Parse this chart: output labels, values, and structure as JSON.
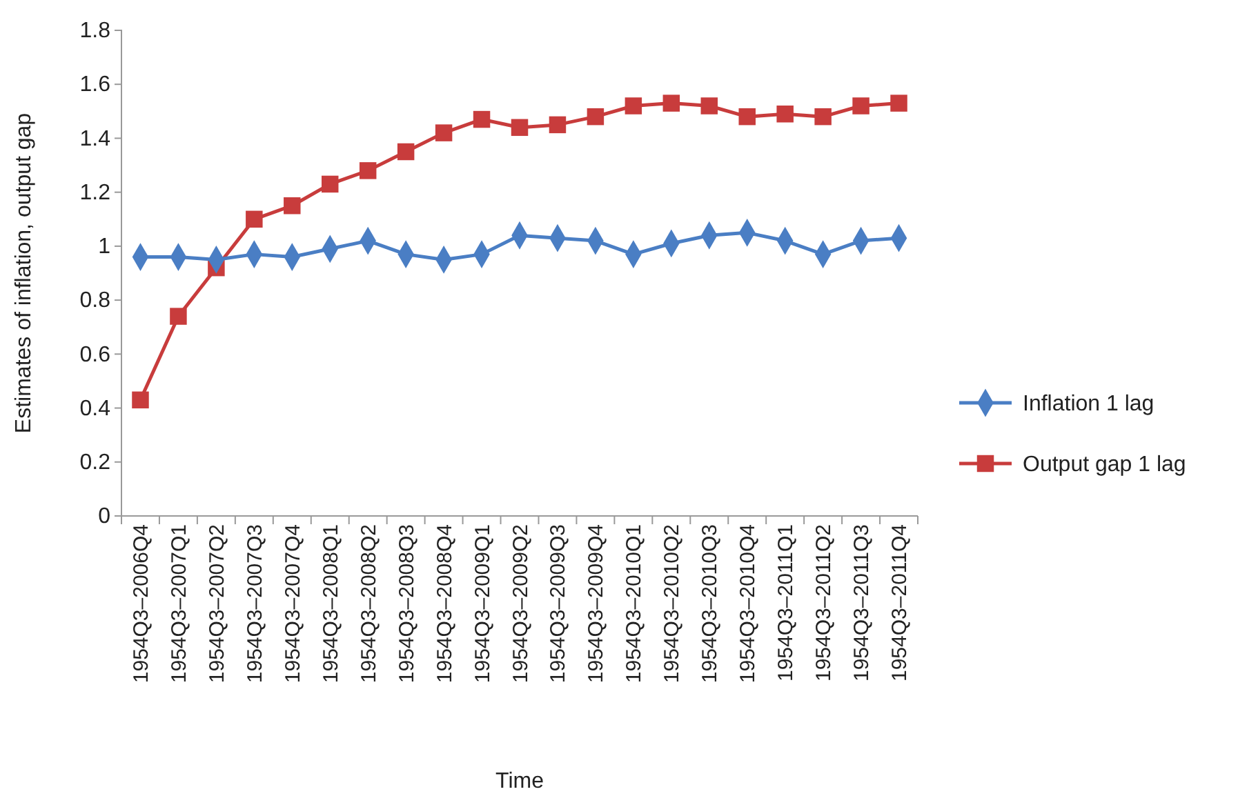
{
  "chart_data": {
    "type": "line",
    "xlabel": "Time",
    "ylabel": "Estimates of inflation, output gap",
    "categories": [
      "1954Q3–2006Q4",
      "1954Q3–2007Q1",
      "1954Q3–2007Q2",
      "1954Q3–2007Q3",
      "1954Q3–2007Q4",
      "1954Q3–2008Q1",
      "1954Q3–2008Q2",
      "1954Q3–2008Q3",
      "1954Q3–2008Q4",
      "1954Q3–2009Q1",
      "1954Q3–2009Q2",
      "1954Q3–2009Q3",
      "1954Q3–2009Q4",
      "1954Q3–2010Q1",
      "1954Q3–2010Q2",
      "1954Q3–2010Q3",
      "1954Q3–2010Q4",
      "1954Q3–2011Q1",
      "1954Q3–2011Q2",
      "1954Q3–2011Q3",
      "1954Q3–2011Q4"
    ],
    "series": [
      {
        "name": "Inflation 1 lag",
        "color": "#4a7ec4",
        "marker": "diamond",
        "values": [
          0.96,
          0.96,
          0.95,
          0.97,
          0.96,
          0.99,
          1.02,
          0.97,
          0.95,
          0.97,
          1.04,
          1.03,
          1.02,
          0.97,
          1.01,
          1.04,
          1.05,
          1.02,
          0.97,
          1.02,
          1.03
        ]
      },
      {
        "name": "Output gap 1 lag",
        "color": "#c83c3c",
        "marker": "square",
        "values": [
          0.43,
          0.74,
          0.92,
          1.1,
          1.15,
          1.23,
          1.28,
          1.35,
          1.42,
          1.47,
          1.44,
          1.45,
          1.48,
          1.52,
          1.53,
          1.52,
          1.48,
          1.49,
          1.48,
          1.52,
          1.53
        ]
      }
    ],
    "ylim": [
      0,
      1.8
    ],
    "yticks": [
      0,
      0.2,
      0.4,
      0.6,
      0.8,
      1,
      1.2,
      1.4,
      1.6,
      1.8
    ],
    "grid": false,
    "legend": "right",
    "line_style": "solid"
  }
}
